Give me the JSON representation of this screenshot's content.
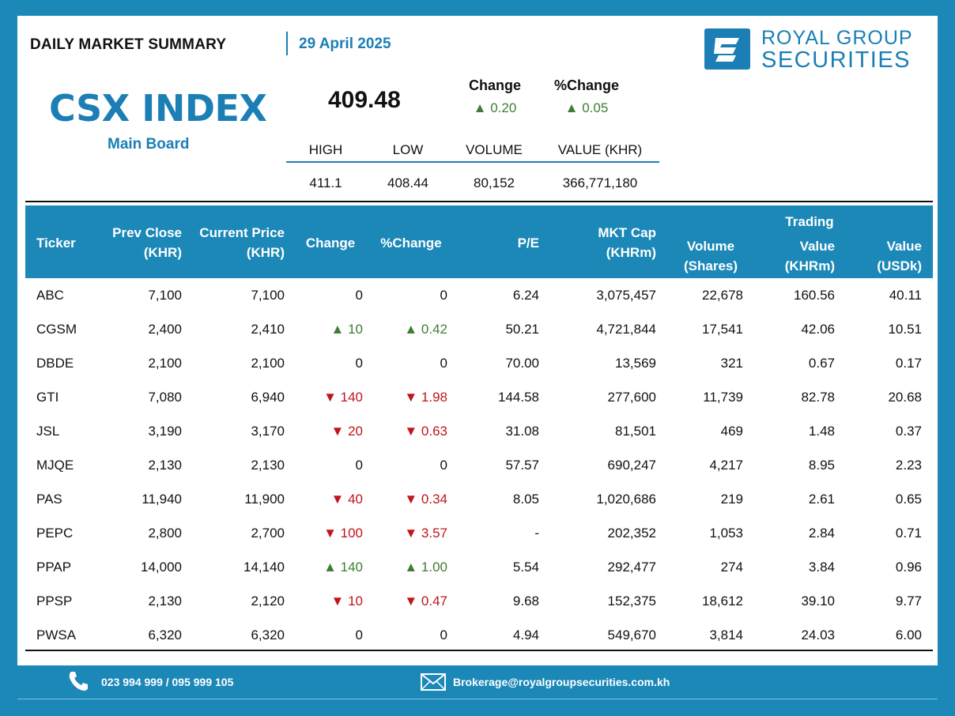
{
  "header": {
    "title": "DAILY MARKET SUMMARY",
    "date": "29 April 2025",
    "brand_line1": "ROYAL GROUP",
    "brand_line2": "SECURITIES"
  },
  "index": {
    "name": "CSX INDEX",
    "board": "Main Board",
    "value": "409.48",
    "change_label": "Change",
    "change_value": "▲ 0.20",
    "pct_change_label": "%Change",
    "pct_change_value": "▲ 0.05",
    "stats": {
      "headers": [
        "HIGH",
        "LOW",
        "VOLUME",
        "VALUE (KHR)"
      ],
      "values": [
        "411.1",
        "408.44",
        "80,152",
        "366,771,180"
      ]
    }
  },
  "table": {
    "headers": {
      "ticker": "Ticker",
      "prev_close_1": "Prev Close",
      "prev_close_2": "(KHR)",
      "current_price_1": "Current Price",
      "current_price_2": "(KHR)",
      "change": "Change",
      "pct_change": "%Change",
      "pe": "P/E",
      "mkt_cap_1": "MKT Cap",
      "mkt_cap_2": "(KHRm)",
      "volume_1": "Volume",
      "volume_2": "(Shares)",
      "trading": "Trading",
      "value_khr_1": "Value",
      "value_khr_2": "(KHRm)",
      "value_usd_1": "Value",
      "value_usd_2": "(USDk)"
    },
    "rows": [
      {
        "ticker": "ABC",
        "prev": "7,100",
        "cur": "7,100",
        "chg": "0",
        "pct": "0",
        "dir": "flat",
        "pe": "6.24",
        "mcap": "3,075,457",
        "vol": "22,678",
        "vkhr": "160.56",
        "vusd": "40.11"
      },
      {
        "ticker": "CGSM",
        "prev": "2,400",
        "cur": "2,410",
        "chg": "▲ 10",
        "pct": "▲ 0.42",
        "dir": "up",
        "pe": "50.21",
        "mcap": "4,721,844",
        "vol": "17,541",
        "vkhr": "42.06",
        "vusd": "10.51"
      },
      {
        "ticker": "DBDE",
        "prev": "2,100",
        "cur": "2,100",
        "chg": "0",
        "pct": "0",
        "dir": "flat",
        "pe": "70.00",
        "mcap": "13,569",
        "vol": "321",
        "vkhr": "0.67",
        "vusd": "0.17"
      },
      {
        "ticker": "GTI",
        "prev": "7,080",
        "cur": "6,940",
        "chg": "▼ 140",
        "pct": "▼ 1.98",
        "dir": "down",
        "pe": "144.58",
        "mcap": "277,600",
        "vol": "11,739",
        "vkhr": "82.78",
        "vusd": "20.68"
      },
      {
        "ticker": "JSL",
        "prev": "3,190",
        "cur": "3,170",
        "chg": "▼ 20",
        "pct": "▼ 0.63",
        "dir": "down",
        "pe": "31.08",
        "mcap": "81,501",
        "vol": "469",
        "vkhr": "1.48",
        "vusd": "0.37"
      },
      {
        "ticker": "MJQE",
        "prev": "2,130",
        "cur": "2,130",
        "chg": "0",
        "pct": "0",
        "dir": "flat",
        "pe": "57.57",
        "mcap": "690,247",
        "vol": "4,217",
        "vkhr": "8.95",
        "vusd": "2.23"
      },
      {
        "ticker": "PAS",
        "prev": "11,940",
        "cur": "11,900",
        "chg": "▼ 40",
        "pct": "▼ 0.34",
        "dir": "down",
        "pe": "8.05",
        "mcap": "1,020,686",
        "vol": "219",
        "vkhr": "2.61",
        "vusd": "0.65"
      },
      {
        "ticker": "PEPC",
        "prev": "2,800",
        "cur": "2,700",
        "chg": "▼ 100",
        "pct": "▼ 3.57",
        "dir": "down",
        "pe": "-",
        "mcap": "202,352",
        "vol": "1,053",
        "vkhr": "2.84",
        "vusd": "0.71"
      },
      {
        "ticker": "PPAP",
        "prev": "14,000",
        "cur": "14,140",
        "chg": "▲ 140",
        "pct": "▲ 1.00",
        "dir": "up",
        "pe": "5.54",
        "mcap": "292,477",
        "vol": "274",
        "vkhr": "3.84",
        "vusd": "0.96"
      },
      {
        "ticker": "PPSP",
        "prev": "2,130",
        "cur": "2,120",
        "chg": "▼ 10",
        "pct": "▼ 0.47",
        "dir": "down",
        "pe": "9.68",
        "mcap": "152,375",
        "vol": "18,612",
        "vkhr": "39.10",
        "vusd": "9.77"
      },
      {
        "ticker": "PWSA",
        "prev": "6,320",
        "cur": "6,320",
        "chg": "0",
        "pct": "0",
        "dir": "flat",
        "pe": "4.94",
        "mcap": "549,670",
        "vol": "3,814",
        "vkhr": "24.03",
        "vusd": "6.00"
      }
    ]
  },
  "footer": {
    "phone": "023 994 999 / 095 999 105",
    "email": "Brokerage@royalgroupsecurities.com.kh"
  },
  "colors": {
    "brand_blue": "#1b7fb5",
    "up": "#3e7d34",
    "down": "#c0151b"
  }
}
